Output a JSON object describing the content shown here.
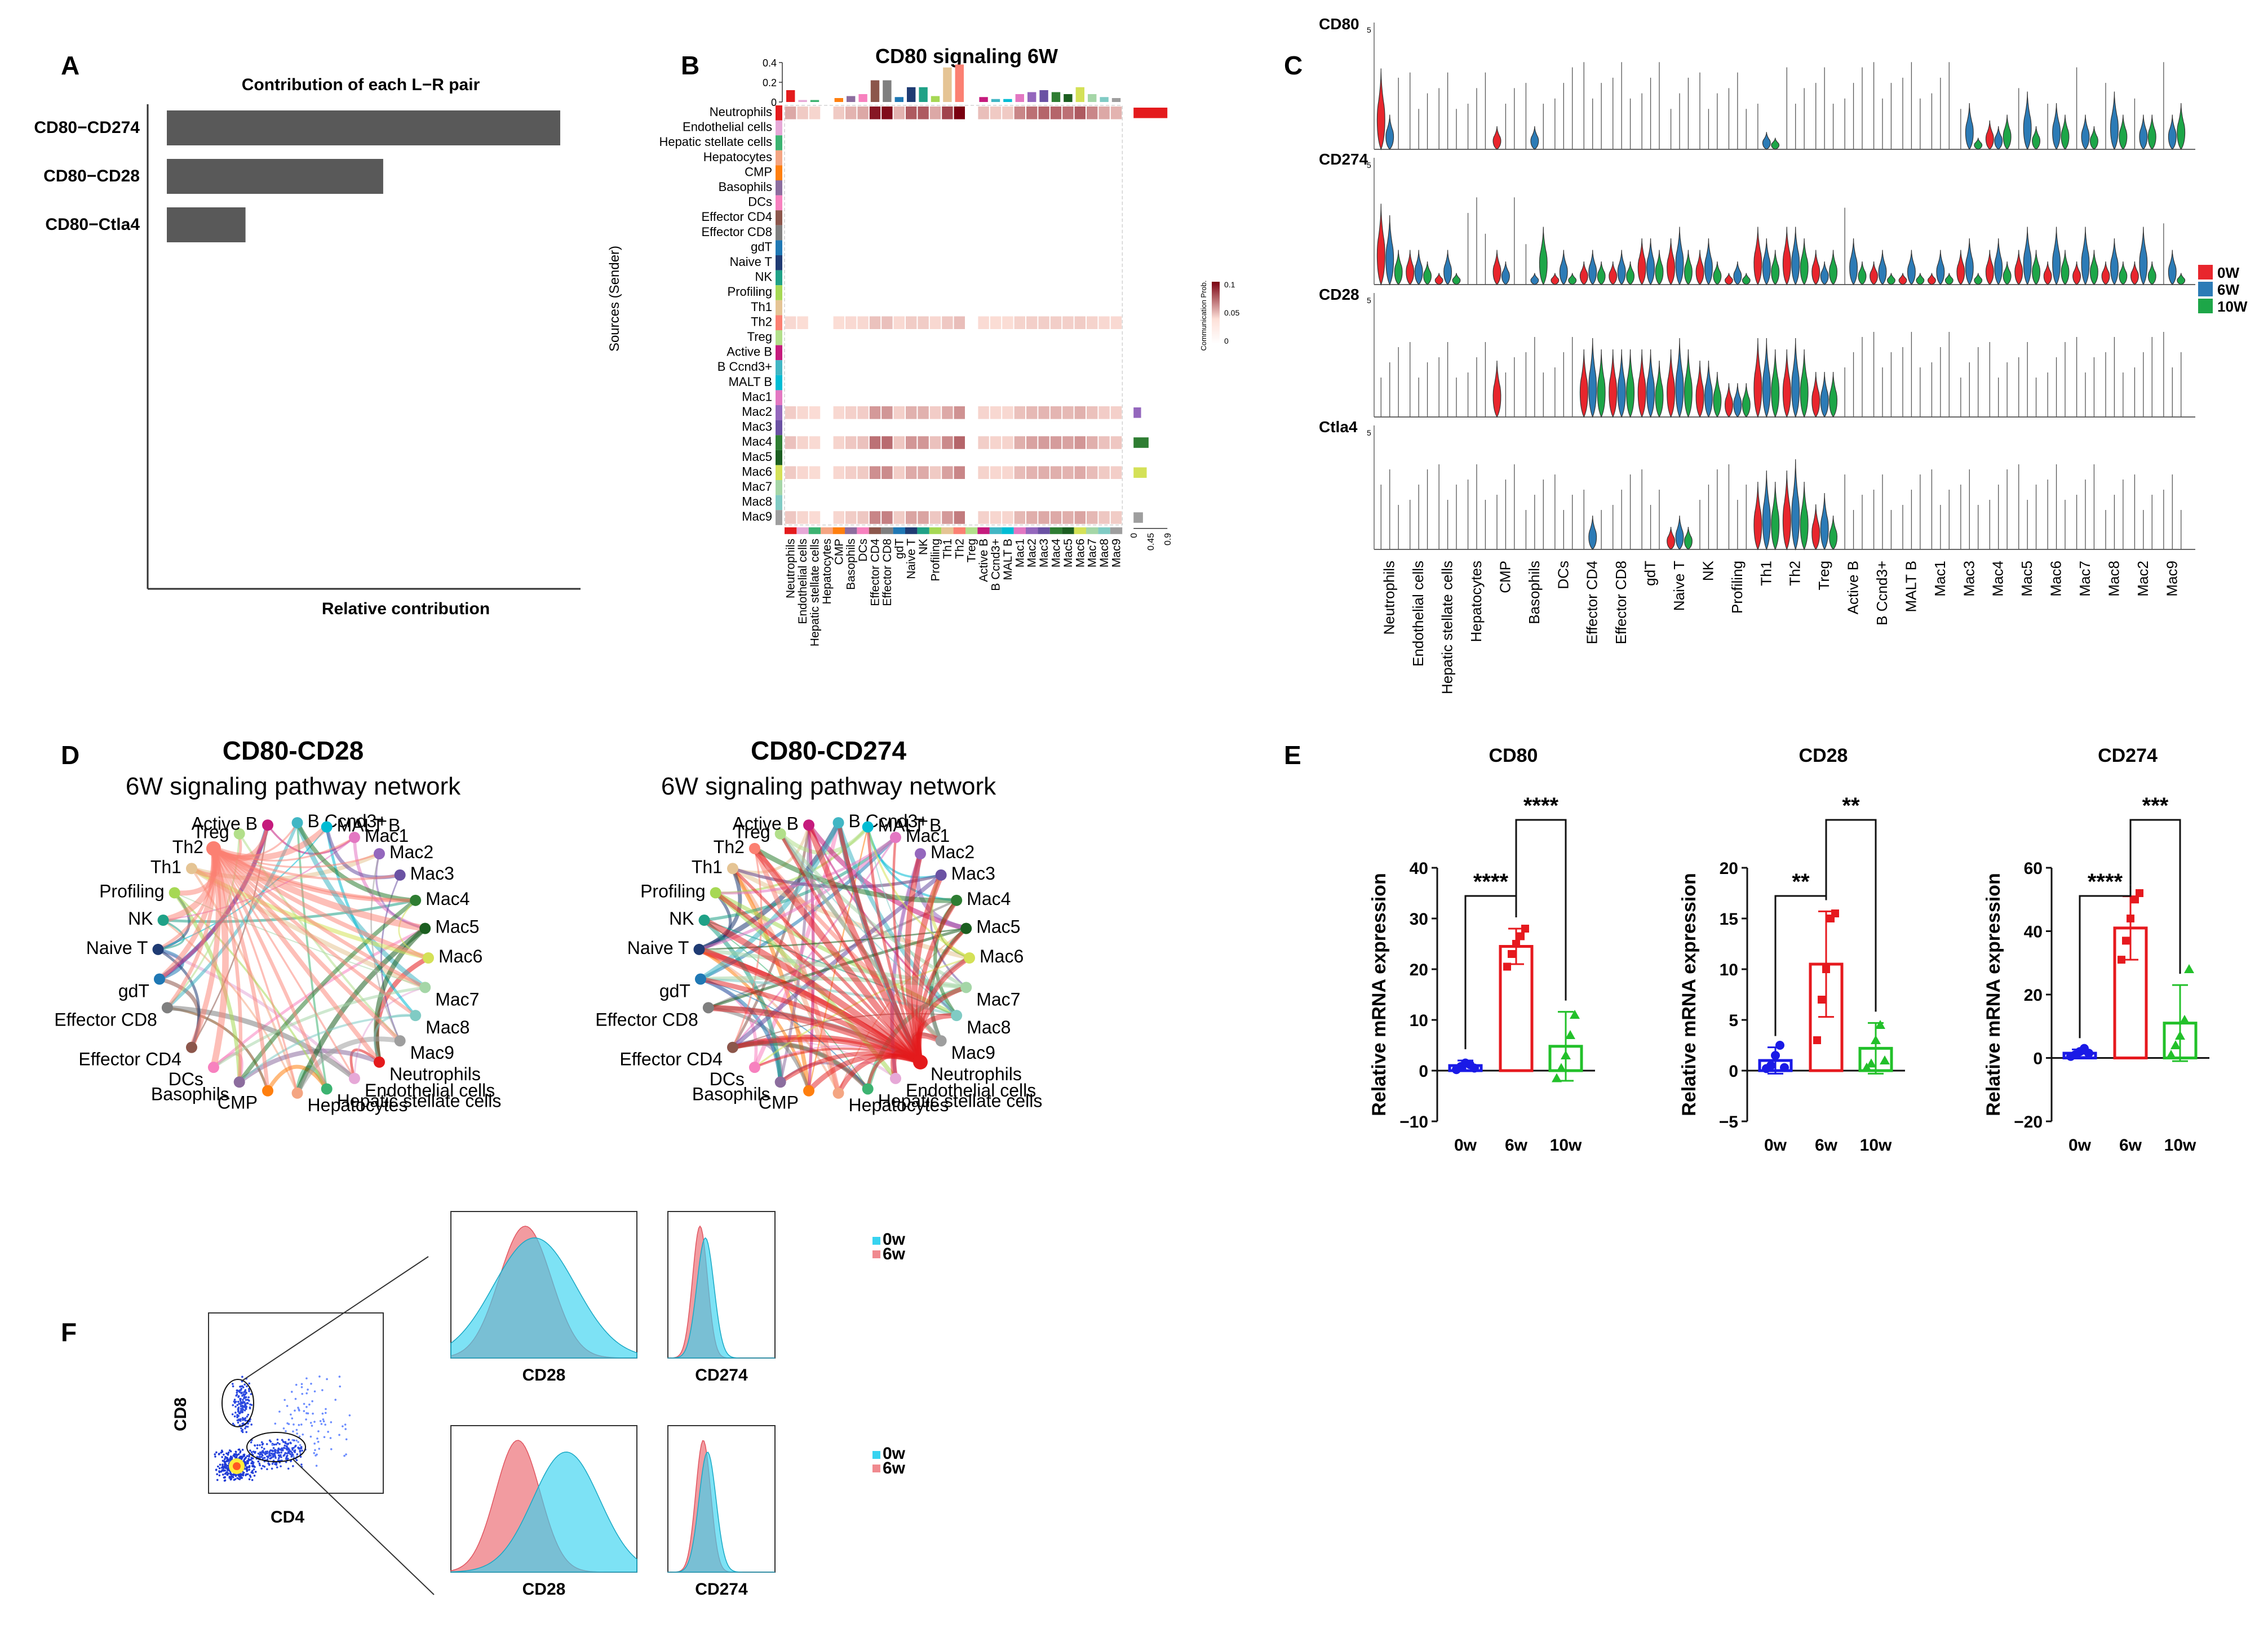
{
  "panel_letters": {
    "a": "A",
    "b": "B",
    "c": "C",
    "d": "D",
    "e": "E",
    "f": "F"
  },
  "colors": {
    "bar_gray": "#595959",
    "y0w": "#e8262d",
    "y6w": "#2c7bb6",
    "y10w": "#1da648",
    "e0w": "#1a1ae6",
    "e6w": "#e6191e",
    "e10w": "#22c02a",
    "flow0w": "#37d3f0",
    "flow6w": "#f08a8f",
    "heat_hi": "#7a0010",
    "heat_lo": "#fde0d8"
  },
  "cells": [
    "Neutrophils",
    "Endothelial cells",
    "Hepatic stellate cells",
    "Hepatocytes",
    "CMP",
    "Basophils",
    "DCs",
    "Effector CD4",
    "Effector CD8",
    "gdT",
    "Naive T",
    "NK",
    "Profiling",
    "Th1",
    "Th2",
    "Treg",
    "Active B",
    "B Ccnd3+",
    "MALT B",
    "Mac1",
    "Mac2",
    "Mac3",
    "Mac4",
    "Mac5",
    "Mac6",
    "Mac7",
    "Mac8",
    "Mac9"
  ],
  "cell_colors": [
    "#e41a1c",
    "#e6a8d7",
    "#3cb371",
    "#f4a582",
    "#ff7f0e",
    "#8c6d9e",
    "#f781bf",
    "#8c564b",
    "#7f7f7f",
    "#1f78b4",
    "#1f3b73",
    "#1fa187",
    "#a6d854",
    "#e5c494",
    "#fb8072",
    "#b2df8a",
    "#c51b7d",
    "#41b6c4",
    "#00bcd4",
    "#e377c2",
    "#9467bd",
    "#6a51a3",
    "#2e7d32",
    "#1b5e20",
    "#d4e157",
    "#a5d6a7",
    "#80cbc4",
    "#9e9e9e"
  ],
  "panel_a": {
    "title": "Contribution of each L−R pair",
    "xlabel": "Relative contribution",
    "chart_data": {
      "type": "bar",
      "orientation": "horizontal",
      "categories": [
        "CD80−CD274",
        "CD80−CD28",
        "CD80−Ctla4"
      ],
      "values": [
        1.0,
        0.55,
        0.2
      ]
    }
  },
  "panel_b": {
    "title": "CD80 signaling  6W",
    "ylabel": "Sources (Sender)",
    "legend_title": "Communication Prob.",
    "legend_ticks": [
      "0.1",
      "0.05",
      "0"
    ],
    "top_ticks": [
      "0.4",
      "0.2",
      "0"
    ],
    "side_ticks": [
      "0",
      "0.45",
      "0.9"
    ],
    "chart_data": {
      "type": "heatmap",
      "rows": [
        "Neutrophils",
        "Endothelial cells",
        "Hepatic stellate cells",
        "Hepatocytes",
        "CMP",
        "Basophils",
        "DCs",
        "Effector CD4",
        "Effector CD8",
        "gdT",
        "Naive T",
        "NK",
        "Profiling",
        "Th1",
        "Th2",
        "Treg",
        "Active B",
        "B Ccnd3+",
        "MALT B",
        "Mac1",
        "Mac2",
        "Mac3",
        "Mac4",
        "Mac5",
        "Mac6",
        "Mac7",
        "Mac8",
        "Mac9"
      ],
      "cols": [
        "Neutrophils",
        "Endothelial cells",
        "Hepatic stellate cells",
        "Hepatocytes",
        "CMP",
        "Basophils",
        "DCs",
        "Effector CD4",
        "Effector CD8",
        "gdT",
        "Naive T",
        "NK",
        "Profiling",
        "Th1",
        "Th2",
        "Treg",
        "Active B",
        "B Ccnd3+",
        "MALT B",
        "Mac1",
        "Mac2",
        "Mac3",
        "Mac4",
        "Mac5",
        "Mac6",
        "Mac7",
        "Mac8",
        "Mac9"
      ],
      "active_rows": {
        "0": 1.0,
        "14": 0.15,
        "20": 0.35,
        "22": 0.55,
        "24": 0.4,
        "27": 0.45
      },
      "col_weights": [
        0.25,
        0.1,
        0.05,
        0,
        0.1,
        0.2,
        0.25,
        0.9,
        0.95,
        0.2,
        0.6,
        0.6,
        0.25,
        0.7,
        1.0,
        0,
        0.15,
        0.1,
        0.1,
        0.4,
        0.5,
        0.55,
        0.55,
        0.5,
        0.6,
        0.4,
        0.25,
        0.2
      ],
      "top_bars": [
        0.12,
        0.02,
        0.02,
        0.0,
        0.04,
        0.06,
        0.08,
        0.22,
        0.22,
        0.05,
        0.15,
        0.15,
        0.06,
        0.35,
        0.38,
        0.0,
        0.05,
        0.03,
        0.03,
        0.08,
        0.1,
        0.12,
        0.1,
        0.08,
        0.15,
        0.08,
        0.05,
        0.04
      ],
      "side_bars": {
        "0": 0.9,
        "20": 0.2,
        "22": 0.4,
        "24": 0.35,
        "27": 0.25
      }
    }
  },
  "panel_c": {
    "genes": [
      "CD80",
      "CD274",
      "CD28",
      "Ctla4"
    ],
    "axis_tick": "5",
    "legend": [
      "0W",
      "6W",
      "10W"
    ],
    "categories": [
      "Neutrophils",
      "Endothelial cells",
      "Hepatic stellate cells",
      "Hepatocytes",
      "CMP",
      "Basophils",
      "DCs",
      "Effector CD4",
      "Effector CD8",
      "gdT",
      "Naive T",
      "NK",
      "Profiling",
      "Th1",
      "Th2",
      "Treg",
      "Active B",
      "B Ccnd3+",
      "MALT B",
      "Mac1",
      "Mac3",
      "Mac4",
      "Mac5",
      "Mac6",
      "Mac7",
      "Mac8",
      "Mac2",
      "Mac9"
    ],
    "violins": {
      "CD80": {
        "0": [
          0.7,
          0.3,
          0
        ],
        "4": [
          0.2,
          0,
          0
        ],
        "20": [
          0,
          0.4,
          0.1
        ],
        "21": [
          0.25,
          0.2,
          0.3
        ],
        "22": [
          0,
          0.5,
          0.2
        ],
        "23": [
          0,
          0.4,
          0.3
        ],
        "24": [
          0,
          0.3,
          0.2
        ],
        "25": [
          0,
          0.5,
          0.3
        ],
        "26": [
          0,
          0.3,
          0.3
        ],
        "27": [
          0,
          0.3,
          0.4
        ],
        "5": [
          0,
          0.2,
          0
        ],
        "13": [
          0,
          0.15,
          0.1
        ]
      },
      "CD274": {
        "0": [
          0.7,
          0.6,
          0.3
        ],
        "1": [
          0.3,
          0.3,
          0.2
        ],
        "2": [
          0.1,
          0.3,
          0.1
        ],
        "4": [
          0.3,
          0.2,
          0
        ],
        "5": [
          0,
          0.1,
          0.5
        ],
        "6": [
          0.1,
          0.3,
          0.1
        ],
        "7": [
          0.2,
          0.3,
          0.2
        ],
        "8": [
          0.2,
          0.3,
          0.2
        ],
        "9": [
          0.4,
          0.4,
          0.3
        ],
        "10": [
          0.4,
          0.5,
          0.3
        ],
        "11": [
          0.3,
          0.4,
          0.2
        ],
        "12": [
          0.1,
          0.2,
          0.1
        ],
        "13": [
          0.5,
          0.4,
          0.3
        ],
        "14": [
          0.5,
          0.5,
          0.4
        ],
        "15": [
          0.3,
          0.2,
          0.3
        ],
        "16": [
          0,
          0.4,
          0.2
        ],
        "17": [
          0.2,
          0.3,
          0.1
        ],
        "18": [
          0.1,
          0.3,
          0.1
        ],
        "19": [
          0.1,
          0.3,
          0.1
        ],
        "20": [
          0.3,
          0.4,
          0.1
        ],
        "21": [
          0.3,
          0.4,
          0.2
        ],
        "22": [
          0.3,
          0.5,
          0.3
        ],
        "23": [
          0.2,
          0.5,
          0.3
        ],
        "24": [
          0.2,
          0.5,
          0.3
        ],
        "25": [
          0.2,
          0.4,
          0.2
        ],
        "26": [
          0.2,
          0.5,
          0.2
        ],
        "27": [
          0,
          0.3,
          0.1
        ]
      },
      "CD28": {
        "4": [
          0.5,
          0,
          0
        ],
        "7": [
          0.6,
          0.7,
          0.6
        ],
        "8": [
          0.6,
          0.6,
          0.6
        ],
        "9": [
          0.6,
          0.6,
          0.5
        ],
        "10": [
          0.6,
          0.7,
          0.6
        ],
        "11": [
          0.5,
          0.5,
          0.4
        ],
        "12": [
          0.3,
          0.3,
          0.3
        ],
        "13": [
          0.7,
          0.7,
          0.6
        ],
        "14": [
          0.6,
          0.7,
          0.6
        ],
        "15": [
          0.4,
          0.4,
          0.4
        ]
      },
      "Ctla4": {
        "7": [
          0,
          0.3,
          0
        ],
        "10": [
          0.2,
          0.3,
          0.2
        ],
        "13": [
          0.6,
          0.7,
          0.6
        ],
        "14": [
          0.7,
          0.8,
          0.6
        ],
        "15": [
          0.4,
          0.5,
          0.3
        ]
      }
    }
  },
  "panel_d": {
    "left_title": "CD80-CD28",
    "right_title": "CD80-CD274",
    "subtitle": "6W signaling pathway network",
    "left_hub": "Th2",
    "right_hub": "Neutrophils"
  },
  "panel_e": {
    "ylabel": "Relative mRNA expression",
    "chart_data": [
      {
        "type": "bar",
        "title": "CD80",
        "categories": [
          "0w",
          "6w",
          "10w"
        ],
        "values": [
          1.0,
          24.5,
          4.8
        ],
        "errors": [
          1.0,
          3.5,
          6.8
        ],
        "ylim": [
          -10,
          40
        ],
        "ticks": [
          "−10",
          "0",
          "10",
          "20",
          "30",
          "40"
        ],
        "sig": [
          {
            "from": 0,
            "to": 1,
            "label": "****"
          },
          {
            "from": 1,
            "to": 2,
            "label": "****"
          }
        ],
        "points": [
          [
            0.2,
            0.8,
            1.5,
            1.2,
            0.5
          ],
          [
            20.5,
            23,
            25,
            26.5,
            28
          ],
          [
            -1.5,
            0.5,
            3,
            7,
            11
          ]
        ]
      },
      {
        "type": "bar",
        "title": "CD28",
        "categories": [
          "0w",
          "6w",
          "10w"
        ],
        "values": [
          1.0,
          10.5,
          2.2
        ],
        "errors": [
          1.3,
          5.2,
          2.5
        ],
        "ylim": [
          -5,
          20
        ],
        "ticks": [
          "−5",
          "0",
          "5",
          "10",
          "15",
          "20"
        ],
        "sig": [
          {
            "from": 0,
            "to": 1,
            "label": "**"
          },
          {
            "from": 1,
            "to": 2,
            "label": "**"
          }
        ],
        "points": [
          [
            0.2,
            0.5,
            1.5,
            2.5,
            0.3
          ],
          [
            3,
            7,
            10,
            15,
            15.5
          ],
          [
            0.3,
            0.7,
            3,
            4.5,
            1
          ]
        ]
      },
      {
        "type": "bar",
        "title": "CD274",
        "categories": [
          "0w",
          "6w",
          "10w"
        ],
        "values": [
          1.5,
          41,
          11
        ],
        "errors": [
          1.2,
          10,
          12
        ],
        "ylim": [
          -20,
          60
        ],
        "ticks": [
          "−20",
          "0",
          "20",
          "40",
          "60"
        ],
        "sig": [
          {
            "from": 0,
            "to": 1,
            "label": "****"
          },
          {
            "from": 1,
            "to": 2,
            "label": "***"
          }
        ],
        "points": [
          [
            0.5,
            1,
            2,
            3,
            1.5
          ],
          [
            31,
            37,
            44,
            50,
            52
          ],
          [
            1,
            4,
            7,
            12,
            28
          ]
        ]
      }
    ]
  },
  "panel_f": {
    "x_axis": "CD4",
    "y_axis": "CD8",
    "hist_labels": [
      "CD28",
      "CD274",
      "CD28",
      "CD274"
    ],
    "legend": [
      "0w",
      "6w"
    ]
  }
}
